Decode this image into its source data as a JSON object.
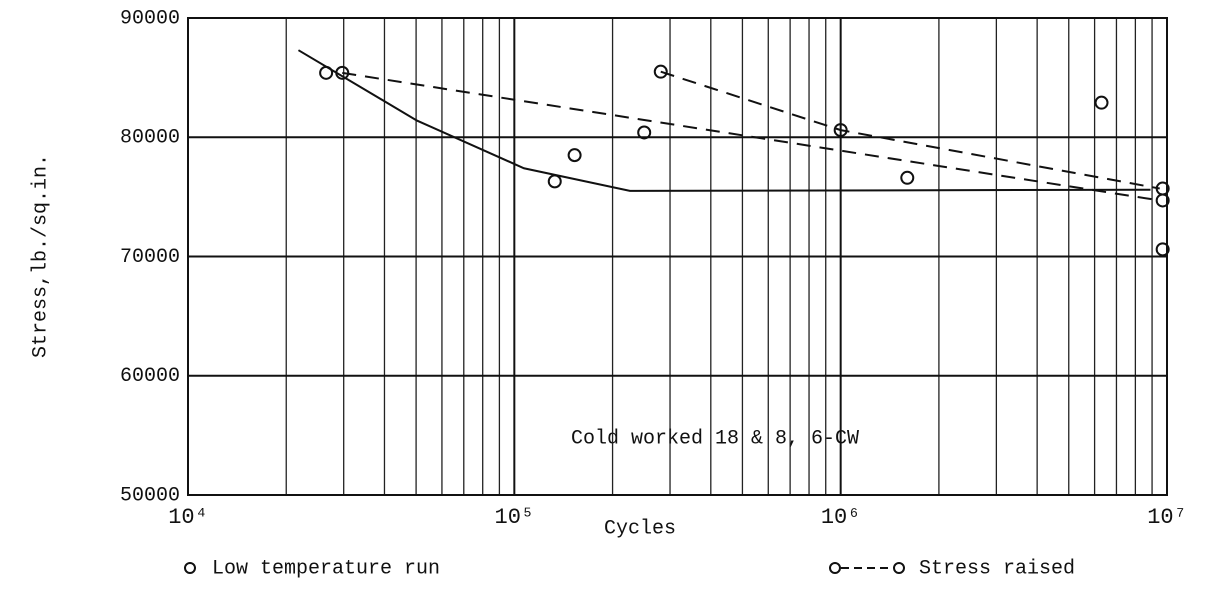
{
  "chart_data": {
    "type": "line",
    "x_label": "Cycles",
    "y_label": "Stress,lb./sq.in.",
    "annotation": "Cold worked 18 & 8, 6-CW",
    "xscale": "log",
    "xlim": [
      10000,
      10000000
    ],
    "ylim": [
      50000,
      90000
    ],
    "xticks": [
      {
        "value": 10000,
        "label": "10⁴"
      },
      {
        "value": 100000,
        "label": "10⁵"
      },
      {
        "value": 1000000,
        "label": "10⁶"
      },
      {
        "value": 10000000,
        "label": "10⁷"
      }
    ],
    "xminor": [
      20000,
      30000,
      40000,
      50000,
      60000,
      70000,
      80000,
      90000,
      200000,
      300000,
      400000,
      500000,
      600000,
      700000,
      800000,
      900000,
      2000000,
      3000000,
      4000000,
      5000000,
      6000000,
      7000000,
      8000000,
      9000000
    ],
    "yticks": [
      50000,
      60000,
      70000,
      80000,
      90000
    ],
    "grid": true,
    "color": "#111111",
    "series": [
      {
        "name": "Low temperature run",
        "style": "points",
        "x": [
          26500,
          29700,
          133000,
          153000,
          250000,
          281000,
          1000000,
          1600000,
          6300000,
          9700000,
          9700000,
          9700000
        ],
        "values": [
          85400,
          85400,
          76300,
          78500,
          80400,
          85500,
          80600,
          76600,
          82900,
          75700,
          74700,
          70600
        ]
      },
      {
        "name": "Stress raised",
        "style": "dashed",
        "x": [
          29700,
          9500000
        ],
        "values": [
          85400,
          74700
        ]
      },
      {
        "style": "dashed",
        "x": [
          281000,
          1000000,
          9500000
        ],
        "values": [
          85500,
          80600,
          75700
        ]
      },
      {
        "style": "solid",
        "x": [
          21800,
          50300,
          107000,
          226000,
          8900000
        ],
        "values": [
          87300,
          81400,
          77400,
          75500,
          75600
        ]
      }
    ]
  }
}
